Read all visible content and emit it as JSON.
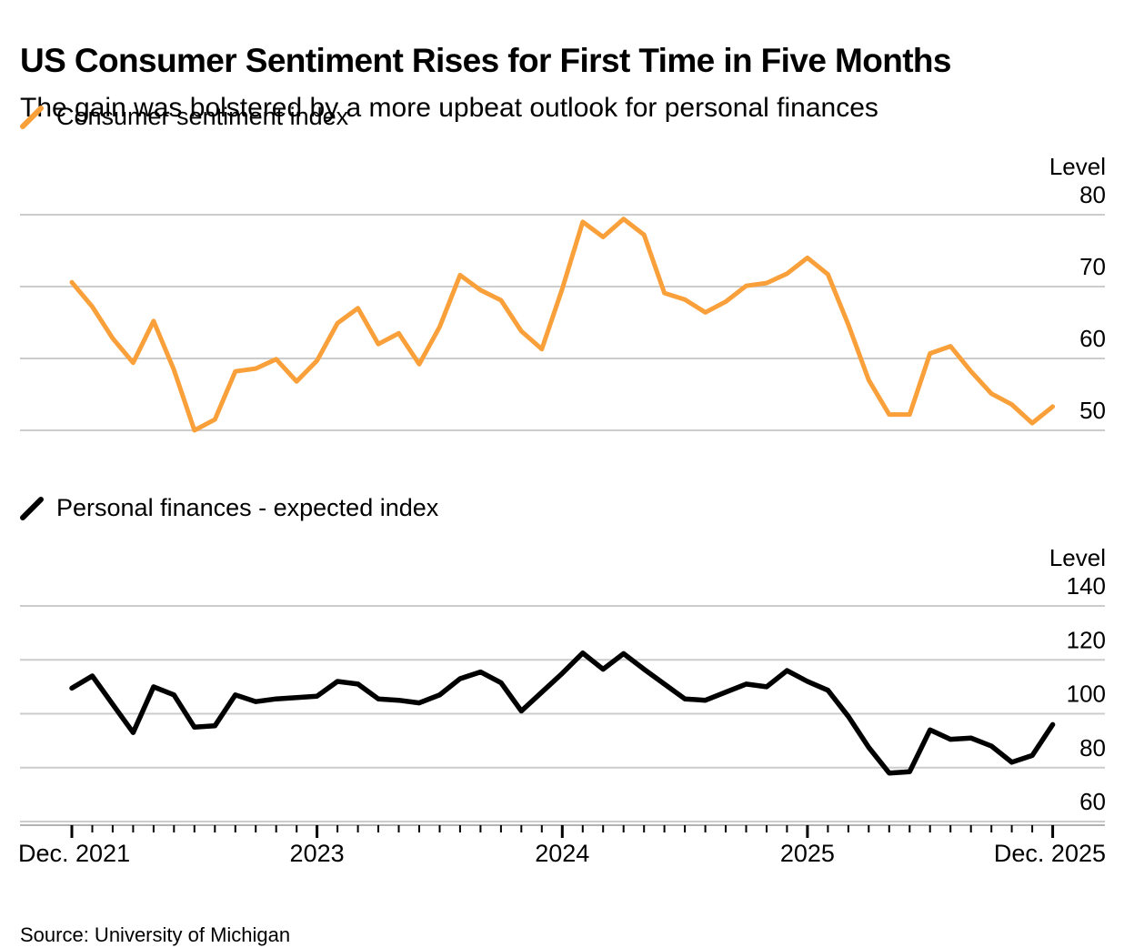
{
  "header": {
    "title": "US Consumer Sentiment Rises for First Time in Five Months",
    "subtitle": "The gain was bolstered by a more upbeat outlook for personal finances"
  },
  "source": "Source: University of Michigan",
  "colors": {
    "sentiment_line": "#F9A03A",
    "finances_line": "#000000",
    "gridline": "#CCCCCC",
    "axis_line": "#B3B3B3",
    "tick": "#000000"
  },
  "x_axis": {
    "tick_labels": [
      "Dec. 2021",
      "2023",
      "2024",
      "2025",
      "Dec. 2025"
    ],
    "minor_tick_interval": "month"
  },
  "chart_data": [
    {
      "type": "line",
      "title": "Consumer sentiment index",
      "ylabel": "Level",
      "yticks": [
        80,
        70,
        60,
        50
      ],
      "ylim": [
        46,
        84
      ],
      "grid": "horizontal",
      "legend_position": "top-left",
      "x": [
        "Dec 2021",
        "Jan 2022",
        "Feb 2022",
        "Mar 2022",
        "Apr 2022",
        "May 2022",
        "Jun 2022",
        "Jul 2022",
        "Aug 2022",
        "Sep 2022",
        "Oct 2022",
        "Nov 2022",
        "Dec 2022",
        "Jan 2023",
        "Feb 2023",
        "Mar 2023",
        "Apr 2023",
        "May 2023",
        "Jun 2023",
        "Jul 2023",
        "Aug 2023",
        "Sep 2023",
        "Oct 2023",
        "Nov 2023",
        "Dec 2023",
        "Jan 2024",
        "Feb 2024",
        "Mar 2024",
        "Apr 2024",
        "May 2024",
        "Jun 2024",
        "Jul 2024",
        "Aug 2024",
        "Sep 2024",
        "Oct 2024",
        "Nov 2024",
        "Dec 2024",
        "Jan 2025",
        "Feb 2025",
        "Mar 2025",
        "Apr 2025",
        "May 2025",
        "Jun 2025",
        "Jul 2025",
        "Aug 2025",
        "Sep 2025",
        "Oct 2025",
        "Nov 2025",
        "Dec 2025"
      ],
      "series": [
        {
          "name": "Consumer sentiment index",
          "color": "#F9A03A",
          "values": [
            70.6,
            67.2,
            62.8,
            59.4,
            65.2,
            58.4,
            50.0,
            51.5,
            58.2,
            58.6,
            59.9,
            56.8,
            59.7,
            64.9,
            67.0,
            62.0,
            63.5,
            59.2,
            64.4,
            71.6,
            69.5,
            68.1,
            63.8,
            61.3,
            69.7,
            79.0,
            76.9,
            79.4,
            77.2,
            69.1,
            68.2,
            66.4,
            67.9,
            70.1,
            70.5,
            71.8,
            74.0,
            71.7,
            64.7,
            57.0,
            52.2,
            52.2,
            60.7,
            61.7,
            58.2,
            55.1,
            53.6,
            51.0,
            53.3
          ]
        }
      ]
    },
    {
      "type": "line",
      "title": "Personal finances - expected index",
      "ylabel": "Level",
      "yticks": [
        140,
        120,
        100,
        80,
        60
      ],
      "ylim": [
        55,
        145
      ],
      "grid": "horizontal",
      "legend_position": "top-left",
      "x": [
        "Dec 2021",
        "Jan 2022",
        "Feb 2022",
        "Mar 2022",
        "Apr 2022",
        "May 2022",
        "Jun 2022",
        "Jul 2022",
        "Aug 2022",
        "Sep 2022",
        "Oct 2022",
        "Nov 2022",
        "Dec 2022",
        "Jan 2023",
        "Feb 2023",
        "Mar 2023",
        "Apr 2023",
        "May 2023",
        "Jun 2023",
        "Jul 2023",
        "Aug 2023",
        "Sep 2023",
        "Oct 2023",
        "Nov 2023",
        "Dec 2023",
        "Jan 2024",
        "Feb 2024",
        "Mar 2024",
        "Apr 2024",
        "May 2024",
        "Jun 2024",
        "Jul 2024",
        "Aug 2024",
        "Sep 2024",
        "Oct 2024",
        "Nov 2024",
        "Dec 2024",
        "Jan 2025",
        "Feb 2025",
        "Mar 2025",
        "Apr 2025",
        "May 2025",
        "Jun 2025",
        "Jul 2025",
        "Aug 2025",
        "Sep 2025",
        "Oct 2025",
        "Nov 2025",
        "Dec 2025"
      ],
      "series": [
        {
          "name": "Personal finances - expected index",
          "color": "#000000",
          "values": [
            109.5,
            114,
            103.5,
            93,
            110,
            107,
            95,
            95.5,
            107,
            104.5,
            105.5,
            106,
            106.5,
            112,
            111,
            105.5,
            105,
            104,
            107,
            113,
            115.5,
            111.5,
            101,
            108,
            115,
            122.5,
            116.5,
            122.3,
            116.5,
            111,
            105.5,
            105,
            108,
            111,
            110,
            116,
            112,
            108.7,
            99,
            87.5,
            78,
            78.5,
            94,
            90.5,
            91,
            88,
            82,
            84.5,
            96
          ]
        }
      ]
    }
  ]
}
